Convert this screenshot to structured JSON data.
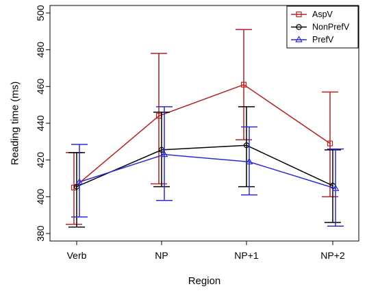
{
  "chart_data": {
    "type": "line",
    "title": "",
    "xlabel": "Region",
    "ylabel": "Reading time (ms)",
    "categories": [
      "Verb",
      "NP",
      "NP+1",
      "NP+2"
    ],
    "ylim": [
      380,
      500
    ],
    "yticks": [
      380,
      400,
      420,
      440,
      460,
      480,
      500
    ],
    "grid": false,
    "legend_position": "top-right",
    "series": [
      {
        "name": "AspV",
        "color": "#b22222",
        "marker": "square",
        "values": [
          405,
          444,
          461,
          429
        ],
        "lower": [
          385,
          407,
          431,
          400
        ],
        "upper": [
          424,
          478,
          491,
          457
        ]
      },
      {
        "name": "NonPrefV",
        "color": "#000000",
        "marker": "circle",
        "values": [
          405.5,
          425.5,
          428,
          406
        ],
        "lower": [
          383.5,
          405.5,
          405.5,
          386
        ],
        "upper": [
          424,
          446,
          449,
          425.5
        ]
      },
      {
        "name": "PrefV",
        "color": "#2b2bd4",
        "marker": "triangle",
        "values": [
          408,
          423,
          419,
          404.5
        ],
        "lower": [
          389,
          398,
          401,
          384
        ],
        "upper": [
          428.5,
          449,
          438,
          426
        ]
      }
    ]
  }
}
